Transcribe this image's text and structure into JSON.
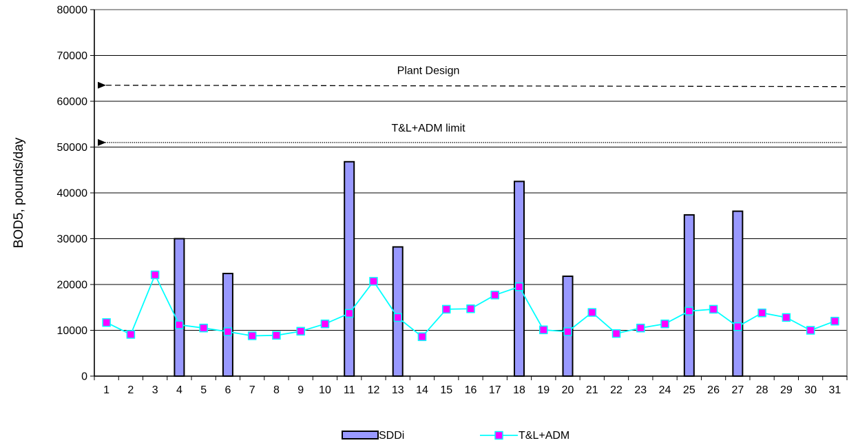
{
  "chart_data": {
    "type": "bar",
    "title": "",
    "xlabel": "",
    "ylabel": "BOD5, pounds/day",
    "ylim": [
      0,
      80000
    ],
    "yticks": [
      0,
      10000,
      20000,
      30000,
      40000,
      50000,
      60000,
      70000,
      80000
    ],
    "grid": true,
    "legend": "bottom",
    "categories": [
      "1",
      "2",
      "3",
      "4",
      "5",
      "6",
      "7",
      "8",
      "9",
      "10",
      "11",
      "12",
      "13",
      "14",
      "15",
      "16",
      "17",
      "18",
      "19",
      "20",
      "21",
      "22",
      "23",
      "24",
      "25",
      "26",
      "27",
      "28",
      "29",
      "30",
      "31"
    ],
    "series": [
      {
        "name": "SDDi",
        "kind": "bar",
        "color": "#9999ff",
        "values": [
          null,
          null,
          null,
          30000,
          null,
          22400,
          null,
          null,
          null,
          null,
          46800,
          null,
          28200,
          null,
          null,
          null,
          null,
          42500,
          null,
          21800,
          null,
          null,
          null,
          null,
          35200,
          null,
          36000,
          null,
          null,
          null,
          null
        ]
      },
      {
        "name": "T&L+ADM",
        "kind": "line",
        "line_color": "#00ffff",
        "marker_color": "#ff00ff",
        "values": [
          11700,
          9100,
          22100,
          11200,
          10500,
          9700,
          8800,
          8900,
          9800,
          11400,
          13700,
          20700,
          12800,
          8600,
          14600,
          14700,
          17700,
          19500,
          10100,
          9700,
          13900,
          9300,
          10500,
          11400,
          14200,
          14600,
          10800,
          13800,
          12800,
          10000,
          12000
        ]
      }
    ],
    "reference_lines": [
      {
        "label": "Plant Design",
        "value": 63500,
        "end_value": 63200,
        "style": "dashed"
      },
      {
        "label": "T&L+ADM limit",
        "value": 51000,
        "end_value": 51000,
        "style": "dotted"
      }
    ]
  }
}
